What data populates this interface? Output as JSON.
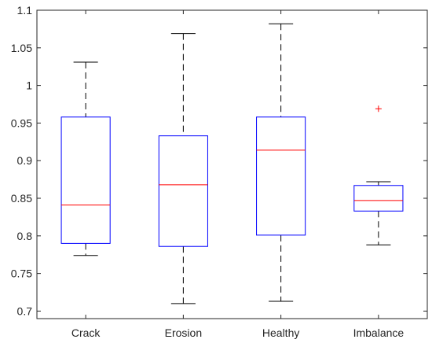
{
  "chart_data": {
    "type": "boxplot",
    "title": "",
    "xlabel": "",
    "ylabel": "",
    "ylim": [
      0.69,
      1.1
    ],
    "yticks": [
      0.7,
      0.75,
      0.8,
      0.85,
      0.9,
      0.95,
      1,
      1.05,
      1.1
    ],
    "ytick_labels": [
      "0.7",
      "0.75",
      "0.8",
      "0.85",
      "0.9",
      "0.95",
      "1",
      "1.05",
      "1.1"
    ],
    "grid": false,
    "box_color": "#0000ff",
    "median_color": "#ff0000",
    "whisker_color": "#000000",
    "outlier_color": "#ff0000",
    "categories": [
      "Crack",
      "Erosion",
      "Healthy",
      "Imbalance"
    ],
    "boxes": [
      {
        "label": "Crack",
        "min": 0.774,
        "q1": 0.79,
        "median": 0.841,
        "q3": 0.958,
        "max": 1.031,
        "outliers": []
      },
      {
        "label": "Erosion",
        "min": 0.71,
        "q1": 0.786,
        "median": 0.868,
        "q3": 0.933,
        "max": 1.069,
        "outliers": []
      },
      {
        "label": "Healthy",
        "min": 0.713,
        "q1": 0.801,
        "median": 0.914,
        "q3": 0.958,
        "max": 1.082,
        "outliers": []
      },
      {
        "label": "Imbalance",
        "min": 0.788,
        "q1": 0.833,
        "median": 0.847,
        "q3": 0.867,
        "max": 0.872,
        "outliers": [
          0.969
        ]
      }
    ]
  }
}
